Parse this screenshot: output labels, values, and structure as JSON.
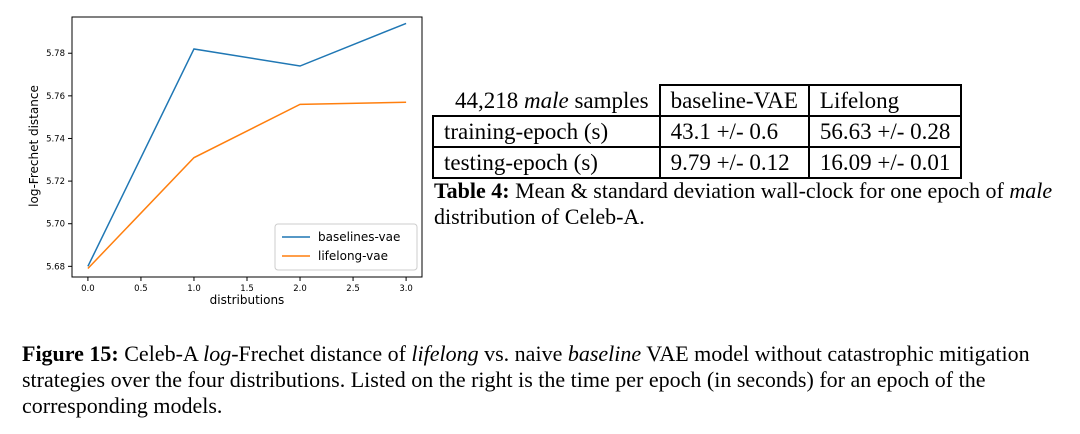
{
  "chart_data": {
    "type": "line",
    "x": [
      0.0,
      1.0,
      2.0,
      3.0
    ],
    "series": [
      {
        "name": "baselines-vae",
        "values": [
          5.68,
          5.782,
          5.774,
          5.794
        ],
        "color": "#1f77b4"
      },
      {
        "name": "lifelong-vae",
        "values": [
          5.679,
          5.731,
          5.756,
          5.757
        ],
        "color": "#ff7f0e"
      }
    ],
    "xlabel": "distributions",
    "ylabel": "log-Frechet distance",
    "xlim": [
      -0.15,
      3.15
    ],
    "ylim": [
      5.675,
      5.797
    ],
    "xticks": [
      "0.0",
      "0.5",
      "1.0",
      "1.5",
      "2.0",
      "2.5",
      "3.0"
    ],
    "yticks": [
      "5.68",
      "5.70",
      "5.72",
      "5.74",
      "5.76",
      "5.78"
    ],
    "legend_position": "lower-right",
    "grid": false
  },
  "table": {
    "header": {
      "count": "44,218",
      "subset": "male",
      "suffix": "samples",
      "col1": "baseline-VAE",
      "col2": "Lifelong"
    },
    "rows": [
      {
        "label": "training-epoch (s)",
        "baseline": "43.1 +/- 0.6",
        "lifelong": "56.63 +/- 0.28"
      },
      {
        "label": "testing-epoch (s)",
        "baseline": "9.79 +/- 0.12",
        "lifelong": "16.09 +/- 0.01"
      }
    ],
    "caption": {
      "label": "Table 4:",
      "text1": "Mean & standard deviation wall-clock for one epoch of",
      "em": "male",
      "text2": "distribution of Celeb-A."
    }
  },
  "figure_caption": {
    "label": "Figure 15:",
    "t1": "Celeb-A",
    "e1": "log",
    "t2": "-Frechet distance of",
    "e2": "lifelong",
    "t3": "vs. naive",
    "e3": "baseline",
    "t4": "VAE model without catastrophic mitigation strategies over the four distributions. Listed on the right is the time per epoch (in seconds) for an epoch of the corresponding models."
  }
}
